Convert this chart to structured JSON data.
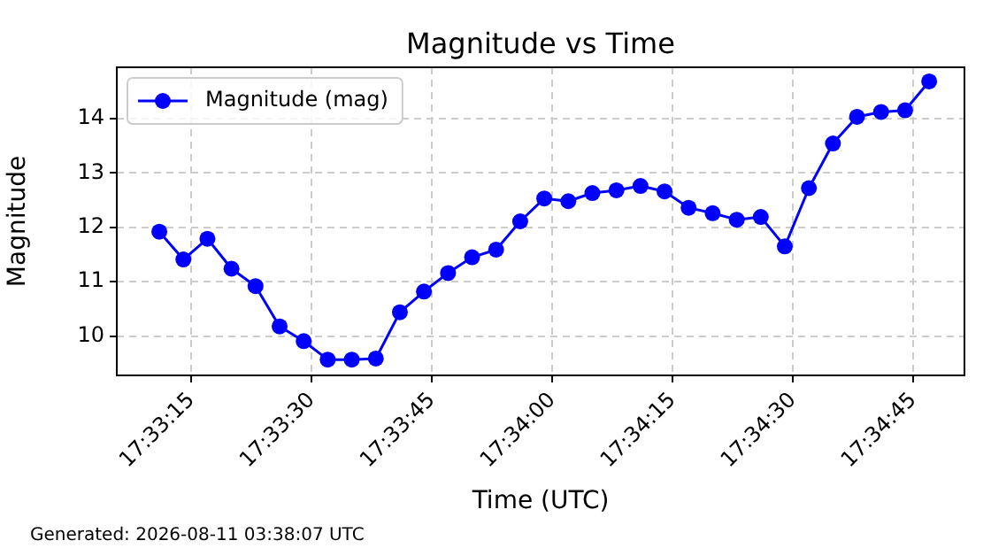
{
  "chart_data": {
    "type": "line",
    "title": "Magnitude vs Time",
    "xlabel": "Time (UTC)",
    "ylabel": "Magnitude",
    "annotations": [
      "Generated: 2026-08-11 03:38:07 UTC"
    ],
    "x": [
      17.553056,
      17.553889,
      17.554722,
      17.555556,
      17.556389,
      17.557222,
      17.558056,
      17.558889,
      17.559722,
      17.560556,
      17.561389,
      17.562222,
      17.563056,
      17.563889,
      17.564722,
      17.565556,
      17.566389,
      17.567222,
      17.568056,
      17.568889,
      17.569722,
      17.570556,
      17.571389,
      17.572222,
      17.573056,
      17.573889,
      17.574722,
      17.575556,
      17.576389,
      17.577222,
      17.578056,
      17.578889,
      17.579722
    ],
    "series": [
      {
        "name": "Magnitude (mag)",
        "color": "#0000ff",
        "values": [
          11.92,
          11.41,
          11.79,
          11.24,
          10.92,
          10.18,
          9.91,
          9.57,
          9.57,
          9.59,
          10.44,
          10.82,
          11.16,
          11.45,
          11.59,
          12.11,
          12.53,
          12.48,
          12.63,
          12.68,
          12.76,
          12.66,
          12.36,
          12.26,
          12.14,
          12.19,
          11.65,
          12.72,
          13.54,
          14.03,
          14.12,
          14.15,
          14.68
        ]
      }
    ],
    "xlim": [
      17.551583,
      17.580944
    ],
    "ylim": [
      9.28,
      14.94
    ],
    "xticks": [
      {
        "value": 17.554167,
        "label": "17:33:15"
      },
      {
        "value": 17.558333,
        "label": "17:33:30"
      },
      {
        "value": 17.5625,
        "label": "17:33:45"
      },
      {
        "value": 17.566667,
        "label": "17:34:00"
      },
      {
        "value": 17.570833,
        "label": "17:34:15"
      },
      {
        "value": 17.575,
        "label": "17:34:30"
      },
      {
        "value": 17.579167,
        "label": "17:34:45"
      }
    ],
    "yticks": [
      10,
      11,
      12,
      13,
      14
    ],
    "grid": true,
    "legend": "top left",
    "marker": "circle",
    "line_style": "solid"
  }
}
